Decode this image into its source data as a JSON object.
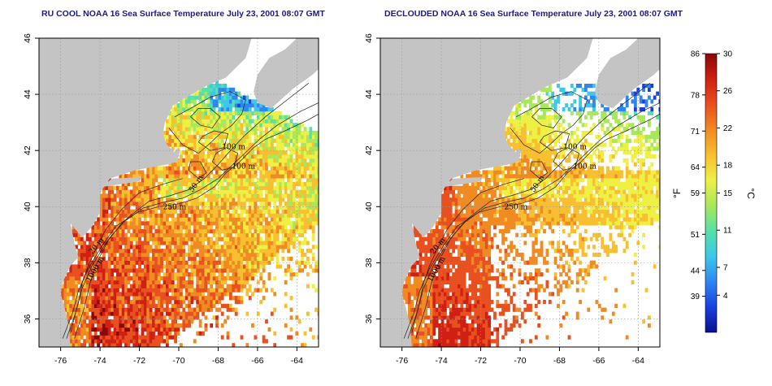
{
  "maps": [
    {
      "id": "ru-cool",
      "title": "RU COOL NOAA 16 Sea Surface Temperature July 23, 2001 08:07 GMT",
      "variant": "raw"
    },
    {
      "id": "declouded",
      "title": "DECLOUDED NOAA 16 Sea Surface Temperature July 23, 2001 08:07 GMT",
      "variant": "declouded"
    }
  ],
  "axes": {
    "lon_ticks": [
      "-76",
      "-74",
      "-72",
      "-70",
      "-68",
      "-66",
      "-64"
    ],
    "lat_ticks": [
      "46",
      "44",
      "42",
      "40",
      "38",
      "36"
    ],
    "lon_range": [
      -77.1,
      -62.9
    ],
    "lat_range": [
      35.0,
      46.0
    ],
    "grid": "dotted"
  },
  "contour_labels": [
    "100 m",
    "100 m",
    "250 m",
    "50 m",
    "20 m",
    "1000 m"
  ],
  "colorbar": {
    "fahrenheit_labels": [
      "86",
      "78",
      "71",
      "64",
      "59",
      "51",
      "44",
      "39"
    ],
    "celsius_labels": [
      "30",
      "26",
      "22",
      "18",
      "15",
      "11",
      "7",
      "4"
    ],
    "fahrenheit_unit": "°F",
    "celsius_unit": "°C",
    "range_c": [
      0,
      30
    ],
    "colors": [
      "#08108f",
      "#1a40e0",
      "#2f86f0",
      "#3cc8e8",
      "#58e0a8",
      "#a8e85a",
      "#eef045",
      "#f8c030",
      "#f08a22",
      "#e85020",
      "#d02014",
      "#8a0808"
    ]
  },
  "colors": {
    "land": "#c4c4c4",
    "ocean_nodata": "#ffffff",
    "title": "#1a1a8c"
  }
}
